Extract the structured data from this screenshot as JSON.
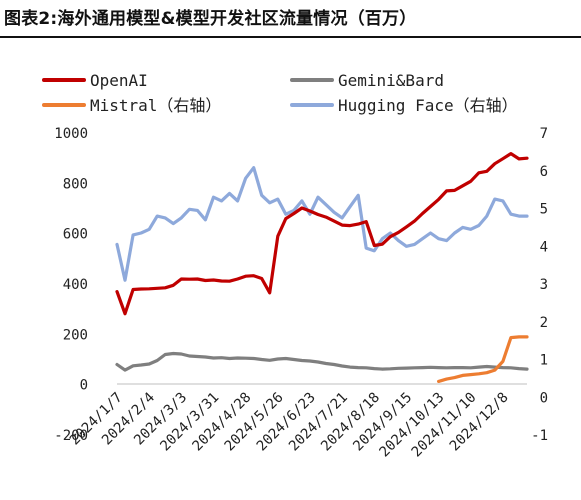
{
  "page_title": "图表2:海外通用模型&模型开发社区流量情况（百万）",
  "chart_data": {
    "type": "line",
    "title": "图表2:海外通用模型&模型开发社区流量情况（百万）",
    "x_ticks": [
      "2024/1/7",
      "2024/2/4",
      "2024/3/3",
      "2024/3/31",
      "2024/4/28",
      "2024/5/26",
      "2024/6/23",
      "2024/7/21",
      "2024/8/18",
      "2024/9/15",
      "2024/10/13",
      "2024/11/10",
      "2024/12/8"
    ],
    "left_axis": {
      "ylim": [
        -200,
        1000
      ],
      "ticks": [
        -200,
        0,
        200,
        400,
        600,
        800,
        1000
      ]
    },
    "right_axis": {
      "ylim": [
        -1,
        7
      ],
      "ticks": [
        -1,
        0,
        1,
        2,
        3,
        4,
        5,
        6,
        7
      ]
    },
    "legend": {
      "placement": "top"
    },
    "grid": false,
    "series": [
      {
        "name": "OpenAI",
        "axis": "left",
        "color": "#C00000",
        "points": [
          [
            "2024/1/7",
            370
          ],
          [
            "2024/1/14",
            282
          ],
          [
            "2024/1/21",
            378
          ],
          [
            "2024/1/28",
            380
          ],
          [
            "2024/2/4",
            381
          ],
          [
            "2024/2/11",
            383
          ],
          [
            "2024/2/18",
            385
          ],
          [
            "2024/2/25",
            395
          ],
          [
            "2024/3/3",
            420
          ],
          [
            "2024/3/10",
            419
          ],
          [
            "2024/3/17",
            420
          ],
          [
            "2024/3/24",
            414
          ],
          [
            "2024/3/31",
            416
          ],
          [
            "2024/4/7",
            412
          ],
          [
            "2024/4/14",
            411
          ],
          [
            "2024/4/21",
            420
          ],
          [
            "2024/4/28",
            431
          ],
          [
            "2024/5/5",
            433
          ],
          [
            "2024/5/12",
            422
          ],
          [
            "2024/5/19",
            365
          ],
          [
            "2024/5/26",
            590
          ],
          [
            "2024/6/2",
            660
          ],
          [
            "2024/6/9",
            680
          ],
          [
            "2024/6/16",
            702
          ],
          [
            "2024/6/23",
            690
          ],
          [
            "2024/6/30",
            676
          ],
          [
            "2024/7/7",
            666
          ],
          [
            "2024/7/14",
            650
          ],
          [
            "2024/7/21",
            634
          ],
          [
            "2024/7/28",
            632
          ],
          [
            "2024/8/4",
            638
          ],
          [
            "2024/8/11",
            648
          ],
          [
            "2024/8/18",
            553
          ],
          [
            "2024/8/25",
            558
          ],
          [
            "2024/9/1",
            588
          ],
          [
            "2024/9/8",
            605
          ],
          [
            "2024/9/15",
            627
          ],
          [
            "2024/9/22",
            650
          ],
          [
            "2024/9/29",
            680
          ],
          [
            "2024/10/6",
            708
          ],
          [
            "2024/10/13",
            736
          ],
          [
            "2024/10/20",
            770
          ],
          [
            "2024/10/27",
            772
          ],
          [
            "2024/11/3",
            790
          ],
          [
            "2024/11/10",
            808
          ],
          [
            "2024/11/17",
            842
          ],
          [
            "2024/11/24",
            848
          ],
          [
            "2024/12/1",
            878
          ],
          [
            "2024/12/8",
            898
          ],
          [
            "2024/12/15",
            918
          ],
          [
            "2024/12/22",
            897
          ],
          [
            "2024/12/29",
            900
          ]
        ]
      },
      {
        "name": "Gemini&Bard",
        "axis": "left",
        "color": "#7F7F7F",
        "points": [
          [
            "2024/1/7",
            80
          ],
          [
            "2024/1/14",
            58
          ],
          [
            "2024/1/21",
            75
          ],
          [
            "2024/1/28",
            78
          ],
          [
            "2024/2/4",
            82
          ],
          [
            "2024/2/11",
            96
          ],
          [
            "2024/2/18",
            120
          ],
          [
            "2024/2/25",
            124
          ],
          [
            "2024/3/3",
            122
          ],
          [
            "2024/3/10",
            114
          ],
          [
            "2024/3/17",
            112
          ],
          [
            "2024/3/24",
            110
          ],
          [
            "2024/3/31",
            106
          ],
          [
            "2024/4/7",
            107
          ],
          [
            "2024/4/14",
            104
          ],
          [
            "2024/4/21",
            106
          ],
          [
            "2024/4/28",
            105
          ],
          [
            "2024/5/5",
            104
          ],
          [
            "2024/5/12",
            100
          ],
          [
            "2024/5/19",
            97
          ],
          [
            "2024/5/26",
            102
          ],
          [
            "2024/6/2",
            104
          ],
          [
            "2024/6/9",
            100
          ],
          [
            "2024/6/16",
            96
          ],
          [
            "2024/6/23",
            94
          ],
          [
            "2024/6/30",
            90
          ],
          [
            "2024/7/7",
            84
          ],
          [
            "2024/7/14",
            80
          ],
          [
            "2024/7/21",
            74
          ],
          [
            "2024/7/28",
            70
          ],
          [
            "2024/8/4",
            68
          ],
          [
            "2024/8/11",
            67
          ],
          [
            "2024/8/18",
            64
          ],
          [
            "2024/8/25",
            62
          ],
          [
            "2024/9/1",
            63
          ],
          [
            "2024/9/8",
            65
          ],
          [
            "2024/9/15",
            66
          ],
          [
            "2024/9/22",
            67
          ],
          [
            "2024/9/29",
            68
          ],
          [
            "2024/10/6",
            69
          ],
          [
            "2024/10/13",
            68
          ],
          [
            "2024/10/20",
            67
          ],
          [
            "2024/10/27",
            68
          ],
          [
            "2024/11/3",
            68
          ],
          [
            "2024/11/10",
            67
          ],
          [
            "2024/11/17",
            70
          ],
          [
            "2024/11/24",
            72
          ],
          [
            "2024/12/1",
            70
          ],
          [
            "2024/12/8",
            68
          ],
          [
            "2024/12/15",
            67
          ],
          [
            "2024/12/22",
            64
          ],
          [
            "2024/12/29",
            62
          ]
        ]
      },
      {
        "name": "Mistral（右轴）",
        "axis": "right",
        "color": "#ED7D31",
        "points": [
          [
            "2024/10/13",
            0.42
          ],
          [
            "2024/10/20",
            0.48
          ],
          [
            "2024/10/27",
            0.52
          ],
          [
            "2024/11/3",
            0.58
          ],
          [
            "2024/11/10",
            0.6
          ],
          [
            "2024/11/17",
            0.62
          ],
          [
            "2024/11/24",
            0.65
          ],
          [
            "2024/12/1",
            0.72
          ],
          [
            "2024/12/8",
            0.95
          ],
          [
            "2024/12/15",
            1.58
          ],
          [
            "2024/12/22",
            1.6
          ],
          [
            "2024/12/29",
            1.6
          ]
        ]
      },
      {
        "name": "Hugging Face（右轴）",
        "axis": "right",
        "color": "#8EA9DB",
        "points": [
          [
            "2024/1/7",
            4.05
          ],
          [
            "2024/1/14",
            3.1
          ],
          [
            "2024/1/21",
            4.3
          ],
          [
            "2024/1/28",
            4.35
          ],
          [
            "2024/2/4",
            4.45
          ],
          [
            "2024/2/11",
            4.8
          ],
          [
            "2024/2/18",
            4.75
          ],
          [
            "2024/2/25",
            4.6
          ],
          [
            "2024/3/3",
            4.75
          ],
          [
            "2024/3/10",
            4.98
          ],
          [
            "2024/3/17",
            4.95
          ],
          [
            "2024/3/24",
            4.7
          ],
          [
            "2024/3/31",
            5.3
          ],
          [
            "2024/4/7",
            5.2
          ],
          [
            "2024/4/14",
            5.4
          ],
          [
            "2024/4/21",
            5.2
          ],
          [
            "2024/4/28",
            5.8
          ],
          [
            "2024/5/5",
            6.08
          ],
          [
            "2024/5/12",
            5.35
          ],
          [
            "2024/5/19",
            5.15
          ],
          [
            "2024/5/26",
            5.25
          ],
          [
            "2024/6/2",
            4.85
          ],
          [
            "2024/6/9",
            4.95
          ],
          [
            "2024/6/16",
            5.2
          ],
          [
            "2024/6/23",
            4.85
          ],
          [
            "2024/6/30",
            5.3
          ],
          [
            "2024/7/7",
            5.1
          ],
          [
            "2024/7/14",
            4.9
          ],
          [
            "2024/7/21",
            4.75
          ],
          [
            "2024/7/28",
            5.05
          ],
          [
            "2024/8/4",
            5.35
          ],
          [
            "2024/8/11",
            3.95
          ],
          [
            "2024/8/18",
            3.88
          ],
          [
            "2024/8/25",
            4.2
          ],
          [
            "2024/9/1",
            4.35
          ],
          [
            "2024/9/8",
            4.15
          ],
          [
            "2024/9/15",
            4.0
          ],
          [
            "2024/9/22",
            4.05
          ],
          [
            "2024/9/29",
            4.2
          ],
          [
            "2024/10/6",
            4.35
          ],
          [
            "2024/10/13",
            4.2
          ],
          [
            "2024/10/20",
            4.15
          ],
          [
            "2024/10/27",
            4.35
          ],
          [
            "2024/11/3",
            4.5
          ],
          [
            "2024/11/10",
            4.45
          ],
          [
            "2024/11/17",
            4.55
          ],
          [
            "2024/11/24",
            4.8
          ],
          [
            "2024/12/1",
            5.25
          ],
          [
            "2024/12/8",
            5.2
          ],
          [
            "2024/12/15",
            4.85
          ],
          [
            "2024/12/22",
            4.8
          ],
          [
            "2024/12/29",
            4.8
          ]
        ]
      }
    ]
  }
}
